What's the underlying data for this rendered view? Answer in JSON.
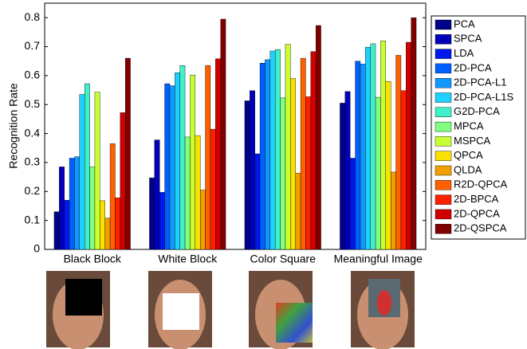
{
  "chart_data": {
    "type": "bar",
    "y_label": "Recognition Rate",
    "categories": [
      "Black Block",
      "White Block",
      "Color Square",
      "Meaningful Image"
    ],
    "ylim": [
      0,
      0.85
    ],
    "yticks": [
      0,
      0.1,
      0.2,
      0.3,
      0.4,
      0.5,
      0.6,
      0.7,
      0.8
    ],
    "legend": "outside-right",
    "series": [
      {
        "name": "PCA",
        "color": "#000088",
        "values": [
          0.13,
          0.247,
          0.513,
          0.505
        ]
      },
      {
        "name": "SPCA",
        "color": "#0000bb",
        "values": [
          0.285,
          0.378,
          0.548,
          0.545
        ]
      },
      {
        "name": "LDA",
        "color": "#0018ee",
        "values": [
          0.17,
          0.197,
          0.33,
          0.315
        ]
      },
      {
        "name": "2D-PCA",
        "color": "#0060ff",
        "values": [
          0.315,
          0.572,
          0.643,
          0.65
        ]
      },
      {
        "name": "2D-PCA-L1",
        "color": "#1098ff",
        "values": [
          0.32,
          0.565,
          0.655,
          0.64
        ]
      },
      {
        "name": "2D-PCA-L1S",
        "color": "#20d0ff",
        "values": [
          0.535,
          0.61,
          0.685,
          0.698
        ]
      },
      {
        "name": "G2D-PCA",
        "color": "#40f0c8",
        "values": [
          0.572,
          0.635,
          0.69,
          0.71
        ]
      },
      {
        "name": "MPCA",
        "color": "#80ff80",
        "values": [
          0.285,
          0.388,
          0.523,
          0.525
        ]
      },
      {
        "name": "MSPCA",
        "color": "#c8ff30",
        "values": [
          0.543,
          0.602,
          0.708,
          0.72
        ]
      },
      {
        "name": "QPCA",
        "color": "#f8e000",
        "values": [
          0.168,
          0.393,
          0.59,
          0.58
        ]
      },
      {
        "name": "QLDA",
        "color": "#f0a000",
        "values": [
          0.108,
          0.205,
          0.263,
          0.267
        ]
      },
      {
        "name": "R2D-QPCA",
        "color": "#ff6000",
        "values": [
          0.365,
          0.635,
          0.66,
          0.67
        ]
      },
      {
        "name": "2D-BPCA",
        "color": "#ff2000",
        "values": [
          0.178,
          0.415,
          0.527,
          0.548
        ]
      },
      {
        "name": "2D-QPCA",
        "color": "#d00000",
        "values": [
          0.472,
          0.658,
          0.683,
          0.715
        ]
      },
      {
        "name": "2D-QSPCA",
        "color": "#800000",
        "values": [
          0.66,
          0.795,
          0.773,
          0.8
        ]
      }
    ]
  }
}
